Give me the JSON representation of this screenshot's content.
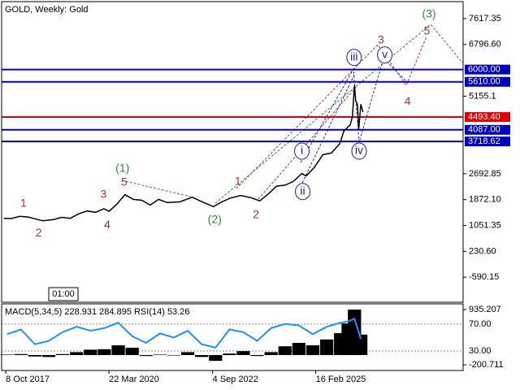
{
  "chart_data": [
    {
      "type": "line",
      "title": "GOLD, Weekly:  Gold",
      "timeframe_label": "01:00",
      "color": "#000000",
      "xlim": [
        2017.67,
        2028.63
      ],
      "ylim": [
        -1385,
        8156
      ],
      "xticks": [
        {
          "value": 2017.77,
          "label": "8 Oct 2017"
        },
        {
          "value": 2020.22,
          "label": "22 Mar 2020"
        },
        {
          "value": 2022.68,
          "label": "4 Sep 2022"
        },
        {
          "value": 2025.13,
          "label": "16 Feb 2025"
        }
      ],
      "yticks": [
        7617.35,
        {
          "value": 6796.6,
          "label": "6796.60"
        },
        5155.1,
        {
          "value": 2692.85,
          "label": "2692.85"
        },
        {
          "value": 1872.1,
          "label": "1872.10"
        },
        1051.35,
        {
          "value": 230.6,
          "label": "230.60"
        },
        -590.15
      ],
      "x": [
        2017.72,
        2017.9,
        2018.1,
        2018.3,
        2018.5,
        2018.65,
        2018.9,
        2019.1,
        2019.3,
        2019.5,
        2019.7,
        2019.9,
        2020.1,
        2020.22,
        2020.4,
        2020.6,
        2020.8,
        2021.0,
        2021.2,
        2021.4,
        2021.6,
        2021.9,
        2022.2,
        2022.4,
        2022.7,
        2022.9,
        2023.1,
        2023.35,
        2023.6,
        2023.8,
        2024.0,
        2024.2,
        2024.4,
        2024.6,
        2024.8,
        2024.9,
        2025.1,
        2025.3,
        2025.5,
        2025.7,
        2025.8,
        2025.95,
        2026.0,
        2026.05,
        2026.08,
        2026.12,
        2026.15,
        2026.2,
        2026.25
      ],
      "values": [
        1280,
        1270,
        1340,
        1320,
        1250,
        1200,
        1240,
        1310,
        1280,
        1420,
        1510,
        1470,
        1580,
        1500,
        1720,
        2030,
        1880,
        1850,
        1700,
        1880,
        1780,
        1800,
        1950,
        1820,
        1650,
        1800,
        1920,
        2000,
        1930,
        1830,
        2050,
        2300,
        2330,
        2450,
        2700,
        2620,
        2900,
        3300,
        3350,
        3650,
        4050,
        4250,
        4500,
        5500,
        5000,
        4900,
        4100,
        4900,
        4650
      ],
      "levels": [
        {
          "value": 6000,
          "label": "6000.00",
          "color": "#0000c0"
        },
        {
          "value": 5610,
          "label": "5610.00",
          "color": "#0000c0"
        },
        {
          "value": 4493.4,
          "label": "4493.40",
          "color": "#e00000"
        },
        {
          "value": 4087,
          "label": "4087.00",
          "color": "#0000c0"
        },
        {
          "value": 3718.62,
          "label": "3718.62",
          "color": "#0000c0"
        }
      ],
      "annotations": [
        {
          "text": "1",
          "x": 2018.19,
          "y": 1743,
          "color": "#a0362e"
        },
        {
          "text": "2",
          "x": 2018.55,
          "y": 794,
          "color": "#a0362e"
        },
        {
          "text": "3",
          "x": 2020.09,
          "y": 2026,
          "color": "#a0362e"
        },
        {
          "text": "4",
          "x": 2020.18,
          "y": 1051,
          "color": "#a0362e"
        },
        {
          "text": "5",
          "x": 2020.58,
          "y": 2410,
          "color": "#a0362e"
        },
        {
          "text": "(1)",
          "x": 2020.54,
          "y": 2846,
          "color": "#2e8b2e"
        },
        {
          "text": "(2)",
          "x": 2022.73,
          "y": 1231,
          "color": "#2e8b2e"
        },
        {
          "text": "1",
          "x": 2023.28,
          "y": 2436,
          "color": "#a0362e"
        },
        {
          "text": "2",
          "x": 2023.71,
          "y": 1384,
          "color": "#a0362e"
        },
        {
          "text": "i",
          "x": 2024.8,
          "y": 3411,
          "color": "#1a1aa0",
          "circled": true
        },
        {
          "text": "ii",
          "x": 2024.82,
          "y": 2128,
          "color": "#1a1aa0",
          "circled": true
        },
        {
          "text": "iii",
          "x": 2026.04,
          "y": 6386,
          "color": "#1a1aa0",
          "circled": true
        },
        {
          "text": "iv",
          "x": 2026.16,
          "y": 3411,
          "color": "#1a1aa0",
          "circled": true
        },
        {
          "text": "v",
          "x": 2026.77,
          "y": 6463,
          "color": "#1a1aa0",
          "circled": true
        },
        {
          "text": "3",
          "x": 2026.68,
          "y": 6925,
          "color": "#a0362e"
        },
        {
          "text": "4",
          "x": 2027.31,
          "y": 4975,
          "color": "#a0362e"
        },
        {
          "text": "5",
          "x": 2027.77,
          "y": 7207,
          "color": "#a0362e"
        },
        {
          "text": "(3)",
          "x": 2027.82,
          "y": 7746,
          "color": "#2e8b2e"
        }
      ]
    },
    {
      "type": "bar",
      "title": "MACD(5,34,5) 228.931 284.895 RSI(14) 53.26",
      "xlim": [
        2017.67,
        2028.63
      ],
      "ylim": [
        -318,
        1052
      ],
      "y2lim": [
        1,
        100
      ],
      "yticks": [
        935.207,
        -200.711
      ],
      "y2ticks": [
        {
          "value": 70,
          "label": "70.00"
        },
        {
          "value": 30,
          "label": "30.00"
        }
      ],
      "x": [
        2017.8,
        2018.13,
        2018.46,
        2018.79,
        2019.12,
        2019.45,
        2019.78,
        2020.11,
        2020.44,
        2020.77,
        2021.1,
        2021.43,
        2021.76,
        2022.09,
        2022.42,
        2022.75,
        2023.08,
        2023.41,
        2023.74,
        2024.07,
        2024.4,
        2024.73,
        2025.06,
        2025.39,
        2025.72,
        2025.9,
        2026.05,
        2026.2
      ],
      "series": [
        {
          "color": "#000000",
          "values": [
            10,
            20,
            -30,
            -40,
            20,
            60,
            110,
            120,
            200,
            150,
            -20,
            10,
            -10,
            60,
            -40,
            -120,
            30,
            80,
            -20,
            60,
            180,
            250,
            200,
            320,
            450,
            650,
            935,
            420
          ]
        },
        {
          "color": "#1e90ff",
          "axis": "y2",
          "values": [
            55,
            62,
            40,
            45,
            58,
            66,
            60,
            64,
            72,
            52,
            42,
            56,
            50,
            60,
            40,
            35,
            62,
            58,
            45,
            64,
            70,
            68,
            55,
            66,
            72,
            74,
            78,
            48
          ]
        }
      ]
    }
  ]
}
